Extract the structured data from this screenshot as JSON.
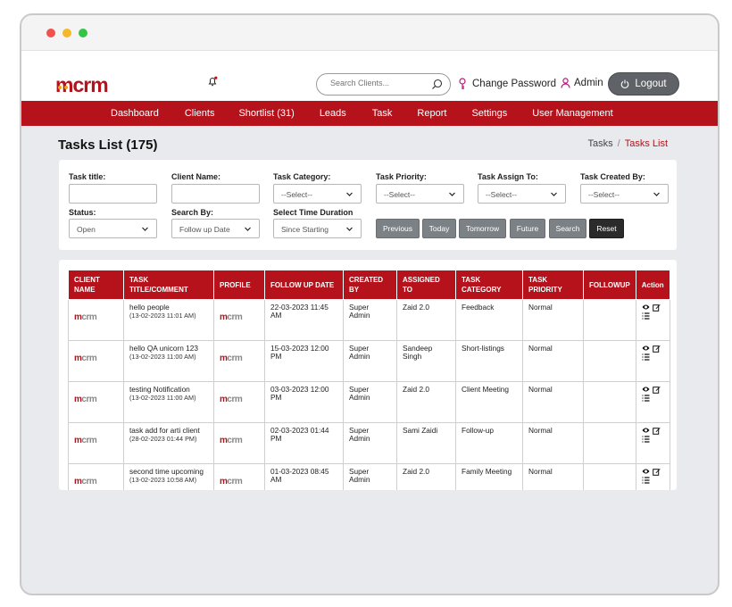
{
  "brand": {
    "logo_text": "mcrm",
    "logo_m": "m",
    "logo_rest": "crm",
    "primary": "#b5121b",
    "accent": "#f2a30f"
  },
  "header": {
    "search_placeholder": "Search Clients...",
    "change_password": "Change Password",
    "admin": "Admin",
    "logout": "Logout"
  },
  "nav": [
    "Dashboard",
    "Clients",
    "Shortlist (31)",
    "Leads",
    "Task",
    "Report",
    "Settings",
    "User Management"
  ],
  "page": {
    "title": "Tasks List (175)",
    "breadcrumb": [
      "Tasks",
      "Tasks List"
    ],
    "sep": "/"
  },
  "filters": {
    "task_title": "Task title:",
    "client_name": "Client Name:",
    "task_category": "Task Category:",
    "task_priority": "Task Priority:",
    "task_assign_to": "Task Assign To:",
    "task_created_by": "Task Created By:",
    "select": "--Select--",
    "status": "Status:",
    "status_value": "Open",
    "search_by": "Search By:",
    "search_by_value": "Follow up Date",
    "time_duration": "Select Time Duration",
    "time_duration_value": "Since Starting",
    "buttons": {
      "previous": "Previous",
      "today": "Today",
      "tomorrow": "Tomorrow",
      "future": "Future",
      "search": "Search",
      "reset": "Reset"
    }
  },
  "table": {
    "headers": {
      "client_name": "CLIENT NAME",
      "title": "TASK TITLE/COMMENT",
      "profile": "PROFILE",
      "follow_up_date": "FOLLOW UP DATE",
      "created_by": "CREATED BY",
      "assigned_to": "ASSIGNED TO",
      "task_category": "TASK CATEGORY",
      "task_priority": "TASK PRIORITY",
      "followup": "FOLLOWUP",
      "action": "Action"
    },
    "rows": [
      {
        "title": "hello people",
        "comment_date": "(13-02-2023 11:01 AM)",
        "follow_up": "22-03-2023 11:45 AM",
        "created_by": "Super Admin",
        "assigned_to": "Zaid 2.0",
        "category": "Feedback",
        "priority": "Normal"
      },
      {
        "title": "hello QA unicorn 123",
        "comment_date": "(13-02-2023 11:00 AM)",
        "follow_up": "15-03-2023 12:00 PM",
        "created_by": "Super Admin",
        "assigned_to": "Sandeep Singh",
        "category": "Short-listings",
        "priority": "Normal"
      },
      {
        "title": "testing Notification",
        "comment_date": "(13-02-2023 11:00 AM)",
        "follow_up": "03-03-2023 12:00 PM",
        "created_by": "Super Admin",
        "assigned_to": "Zaid 2.0",
        "category": "Client Meeting",
        "priority": "Normal"
      },
      {
        "title": "task add for arti client",
        "comment_date": "(28-02-2023 01:44 PM)",
        "follow_up": "02-03-2023 01:44 PM",
        "created_by": "Super Admin",
        "assigned_to": "Sami Zaidi",
        "category": "Follow-up",
        "priority": "Normal"
      },
      {
        "title": "second time upcoming",
        "comment_date": "(13-02-2023 10:58 AM)",
        "follow_up": "01-03-2023 08:45 AM",
        "created_by": "Super Admin",
        "assigned_to": "Zaid 2.0",
        "category": "Family Meeting",
        "priority": "Normal"
      }
    ]
  }
}
